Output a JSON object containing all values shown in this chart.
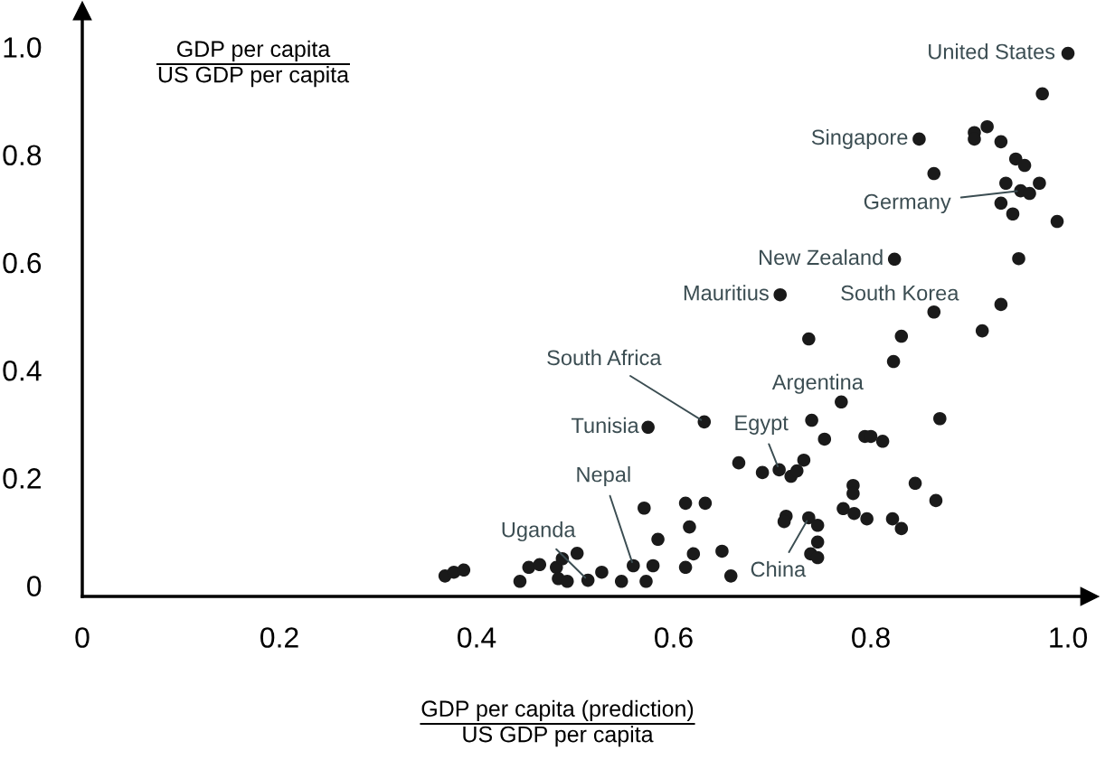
{
  "chart_data": {
    "type": "scatter",
    "xlabel": "GDP per capita (prediction)\nUS GDP per capita",
    "ylabel": "GDP per capita\nUS GDP per capita",
    "x": [
      0.368,
      0.377,
      0.387,
      0.444,
      0.453,
      0.464,
      0.481,
      0.487,
      0.483,
      0.492,
      0.502,
      0.513,
      0.527,
      0.547,
      0.559,
      0.572,
      0.579,
      0.57,
      0.584,
      0.612,
      0.632,
      0.616,
      0.62,
      0.612,
      0.649,
      0.658,
      0.666,
      0.69,
      0.77,
      0.74,
      0.753,
      0.794,
      0.8,
      0.812,
      0.87,
      0.707,
      0.719,
      0.725,
      0.732,
      0.782,
      0.782,
      0.772,
      0.783,
      0.796,
      0.845,
      0.866,
      0.822,
      0.831,
      0.714,
      0.712,
      0.737,
      0.746,
      0.746,
      0.739,
      0.746,
      0.708,
      0.737,
      0.631,
      0.574,
      1.0,
      0.974,
      0.849,
      0.905,
      0.905,
      0.918,
      0.932,
      0.947,
      0.956,
      0.864,
      0.937,
      0.952,
      0.961,
      0.971,
      0.932,
      0.944,
      0.989,
      0.824,
      0.95,
      0.864,
      0.932,
      0.913,
      0.831,
      0.823
    ],
    "series": [
      {
        "color": "#1a1a1a",
        "values": [
          0.018,
          0.025,
          0.029,
          0.008,
          0.034,
          0.039,
          0.034,
          0.05,
          0.013,
          0.008,
          0.06,
          0.01,
          0.025,
          0.008,
          0.037,
          0.008,
          0.037,
          0.144,
          0.086,
          0.153,
          0.153,
          0.109,
          0.059,
          0.034,
          0.064,
          0.018,
          0.228,
          0.21,
          0.341,
          0.307,
          0.272,
          0.277,
          0.277,
          0.268,
          0.31,
          0.215,
          0.203,
          0.213,
          0.233,
          0.186,
          0.171,
          0.143,
          0.134,
          0.124,
          0.19,
          0.158,
          0.124,
          0.106,
          0.129,
          0.119,
          0.126,
          0.112,
          0.081,
          0.059,
          0.052,
          0.54,
          0.458,
          0.304,
          0.294,
          0.988,
          0.913,
          0.829,
          0.841,
          0.829,
          0.852,
          0.824,
          0.792,
          0.78,
          0.765,
          0.747,
          0.733,
          0.728,
          0.747,
          0.71,
          0.69,
          0.676,
          0.606,
          0.607,
          0.508,
          0.522,
          0.473,
          0.463,
          0.416
        ]
      }
    ],
    "marker": "circle",
    "xlim": [
      0,
      1.022
    ],
    "ylim": [
      -0.02,
      1.067
    ],
    "xticks": [
      0,
      0.2,
      0.4,
      0.6,
      0.8,
      {
        "value": 1,
        "label": "1.0"
      }
    ],
    "yticks": [
      0,
      0.2,
      0.4,
      0.6,
      0.8,
      {
        "value": 1,
        "label": "1.0"
      }
    ],
    "grid": false,
    "annotations": [
      {
        "text": "United States",
        "x": 1.0,
        "y": 0.988
      },
      {
        "text": "Singapore",
        "x": 0.849,
        "y": 0.829
      },
      {
        "text": "Germany",
        "x": 0.952,
        "y": 0.733
      },
      {
        "text": "New Zealand",
        "x": 0.824,
        "y": 0.606
      },
      {
        "text": "Mauritius",
        "x": 0.708,
        "y": 0.54
      },
      {
        "text": "South Korea",
        "x": 0.864,
        "y": 0.508
      },
      {
        "text": "South Africa",
        "x": 0.631,
        "y": 0.304
      },
      {
        "text": "Argentina",
        "x": 0.77,
        "y": 0.341
      },
      {
        "text": "Tunisia",
        "x": 0.574,
        "y": 0.294
      },
      {
        "text": "Egypt",
        "x": 0.707,
        "y": 0.215
      },
      {
        "text": "Nepal",
        "x": 0.559,
        "y": 0.037
      },
      {
        "text": "Uganda",
        "x": 0.513,
        "y": 0.01
      },
      {
        "text": "China",
        "x": 0.737,
        "y": 0.126
      }
    ]
  }
}
